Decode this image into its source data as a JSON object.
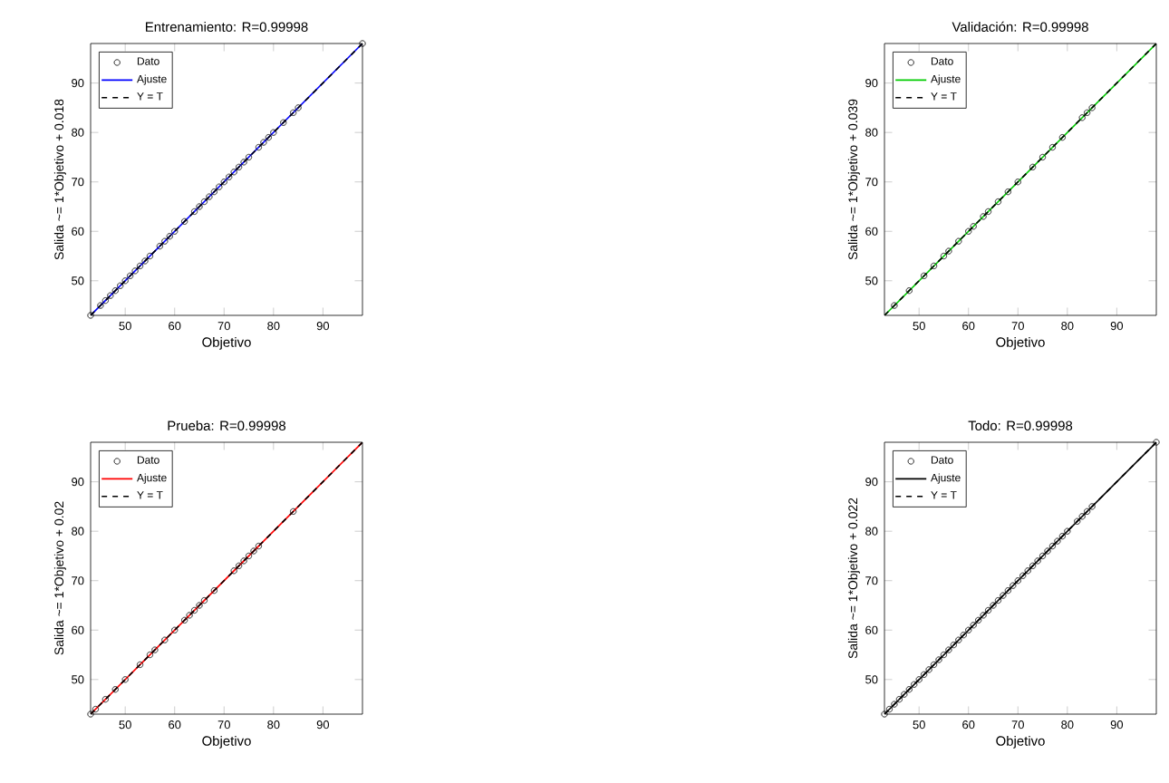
{
  "chart_data": [
    {
      "type": "scatter",
      "title": "Entrenamiento: R=0.99998",
      "xlabel": "Objetivo",
      "ylabel": "Salida ~= 1*Objetivo + 0.018",
      "xlim": [
        43,
        98
      ],
      "ylim": [
        43,
        98
      ],
      "xticks": [
        50,
        60,
        70,
        80,
        90
      ],
      "yticks": [
        50,
        60,
        70,
        80,
        90
      ],
      "legend": "top left",
      "series": [
        {
          "name": "Dato",
          "marker": "circle",
          "color": "#000000",
          "x": [
            43,
            45,
            46,
            47,
            48,
            49,
            50,
            51,
            52,
            53,
            54,
            55,
            57,
            58,
            59,
            60,
            62,
            64,
            65,
            66,
            67,
            68,
            69,
            70,
            71,
            72,
            73,
            74,
            75,
            77,
            78,
            79,
            80,
            82,
            84,
            85,
            98
          ],
          "values": [
            43,
            45,
            46,
            47,
            48,
            49,
            50,
            51,
            52,
            53,
            54,
            55,
            57,
            58,
            59,
            60,
            62,
            64,
            65,
            66,
            67,
            68,
            69,
            70,
            71,
            72,
            73,
            74,
            75,
            77,
            78,
            79,
            80,
            82,
            84,
            85,
            98
          ]
        },
        {
          "name": "Ajuste",
          "type": "line",
          "marker": "none",
          "line_style": "solid",
          "color": "#0000ff",
          "x": [
            43,
            98
          ],
          "values": [
            43,
            98
          ]
        },
        {
          "name": "Y = T",
          "type": "line",
          "marker": "none",
          "line_style": "dashed",
          "color": "#000000",
          "x": [
            43,
            98
          ],
          "values": [
            43,
            98
          ]
        }
      ]
    },
    {
      "type": "scatter",
      "title": "Validación: R=0.99998",
      "xlabel": "Objetivo",
      "ylabel": "Salida ~= 1*Objetivo + 0.039",
      "xlim": [
        43,
        98
      ],
      "ylim": [
        43,
        98
      ],
      "xticks": [
        50,
        60,
        70,
        80,
        90
      ],
      "yticks": [
        50,
        60,
        70,
        80,
        90
      ],
      "legend": "top left",
      "series": [
        {
          "name": "Dato",
          "marker": "circle",
          "color": "#000000",
          "x": [
            45,
            48,
            51,
            53,
            55,
            56,
            58,
            60,
            61,
            63,
            64,
            66,
            68,
            70,
            73,
            75,
            77,
            79,
            83,
            84,
            85
          ],
          "values": [
            45,
            48,
            51,
            53,
            55,
            56,
            58,
            60,
            61,
            63,
            64,
            66,
            68,
            70,
            73,
            75,
            77,
            79,
            83,
            84,
            85
          ]
        },
        {
          "name": "Ajuste",
          "type": "line",
          "marker": "none",
          "line_style": "solid",
          "color": "#00cc00",
          "x": [
            43,
            98
          ],
          "values": [
            43,
            98
          ]
        },
        {
          "name": "Y = T",
          "type": "line",
          "marker": "none",
          "line_style": "dashed",
          "color": "#000000",
          "x": [
            43,
            98
          ],
          "values": [
            43,
            98
          ]
        }
      ]
    },
    {
      "type": "scatter",
      "title": "Prueba: R=0.99998",
      "xlabel": "Objetivo",
      "ylabel": "Salida ~= 1*Objetivo + 0.02",
      "xlim": [
        43,
        98
      ],
      "ylim": [
        43,
        98
      ],
      "xticks": [
        50,
        60,
        70,
        80,
        90
      ],
      "yticks": [
        50,
        60,
        70,
        80,
        90
      ],
      "legend": "top left",
      "series": [
        {
          "name": "Dato",
          "marker": "circle",
          "color": "#000000",
          "x": [
            43,
            44,
            46,
            48,
            50,
            53,
            55,
            56,
            58,
            60,
            62,
            63,
            64,
            65,
            66,
            68,
            72,
            73,
            74,
            75,
            76,
            77,
            84
          ],
          "values": [
            43,
            44,
            46,
            48,
            50,
            53,
            55,
            56,
            58,
            60,
            62,
            63,
            64,
            65,
            66,
            68,
            72,
            73,
            74,
            75,
            76,
            77,
            84
          ]
        },
        {
          "name": "Ajuste",
          "type": "line",
          "marker": "none",
          "line_style": "solid",
          "color": "#ff0000",
          "x": [
            43,
            98
          ],
          "values": [
            43,
            98
          ]
        },
        {
          "name": "Y = T",
          "type": "line",
          "marker": "none",
          "line_style": "dashed",
          "color": "#000000",
          "x": [
            43,
            98
          ],
          "values": [
            43,
            98
          ]
        }
      ]
    },
    {
      "type": "scatter",
      "title": "Todo: R=0.99998",
      "xlabel": "Objetivo",
      "ylabel": "Salida ~= 1*Objetivo + 0.022",
      "xlim": [
        43,
        98
      ],
      "ylim": [
        43,
        98
      ],
      "xticks": [
        50,
        60,
        70,
        80,
        90
      ],
      "yticks": [
        50,
        60,
        70,
        80,
        90
      ],
      "legend": "top left",
      "series": [
        {
          "name": "Dato",
          "marker": "circle",
          "color": "#000000",
          "x": [
            43,
            44,
            45,
            46,
            47,
            48,
            49,
            50,
            51,
            52,
            53,
            54,
            55,
            56,
            57,
            58,
            59,
            60,
            61,
            62,
            63,
            64,
            65,
            66,
            67,
            68,
            69,
            70,
            71,
            72,
            73,
            74,
            75,
            76,
            77,
            78,
            79,
            80,
            82,
            83,
            84,
            85,
            98
          ],
          "values": [
            43,
            44,
            45,
            46,
            47,
            48,
            49,
            50,
            51,
            52,
            53,
            54,
            55,
            56,
            57,
            58,
            59,
            60,
            61,
            62,
            63,
            64,
            65,
            66,
            67,
            68,
            69,
            70,
            71,
            72,
            73,
            74,
            75,
            76,
            77,
            78,
            79,
            80,
            82,
            83,
            84,
            85,
            98
          ]
        },
        {
          "name": "Ajuste",
          "type": "line",
          "marker": "none",
          "line_style": "solid",
          "color": "#000000",
          "x": [
            43,
            98
          ],
          "values": [
            43,
            98
          ]
        },
        {
          "name": "Y = T",
          "type": "line",
          "marker": "none",
          "line_style": "dashed",
          "color": "#000000",
          "x": [
            43,
            98
          ],
          "values": [
            43,
            98
          ]
        }
      ]
    }
  ]
}
